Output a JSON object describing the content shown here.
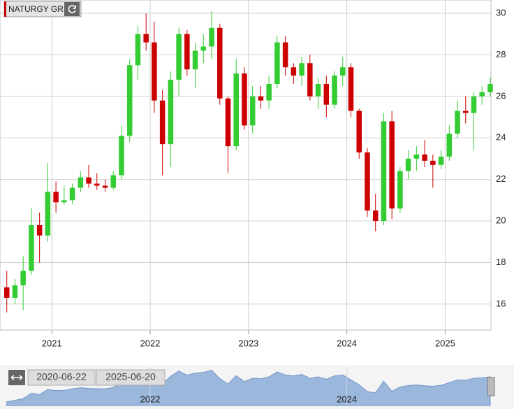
{
  "chart_data": {
    "type": "candlestick",
    "title": "NATURGY GR",
    "x": [
      "2020-07",
      "2020-08",
      "2020-09",
      "2020-10",
      "2020-11",
      "2020-12",
      "2021-01",
      "2021-02",
      "2021-03",
      "2021-04",
      "2021-05",
      "2021-06",
      "2021-07",
      "2021-08",
      "2021-09",
      "2021-10",
      "2021-11",
      "2021-12",
      "2022-01",
      "2022-02",
      "2022-03",
      "2022-04",
      "2022-05",
      "2022-06",
      "2022-07",
      "2022-08",
      "2022-09",
      "2022-10",
      "2022-11",
      "2022-12",
      "2023-01",
      "2023-02",
      "2023-03",
      "2023-04",
      "2023-05",
      "2023-06",
      "2023-07",
      "2023-08",
      "2023-09",
      "2023-10",
      "2023-11",
      "2023-12",
      "2024-01",
      "2024-02",
      "2024-03",
      "2024-04",
      "2024-05",
      "2024-06",
      "2024-07",
      "2024-08",
      "2024-09",
      "2024-10",
      "2024-11",
      "2024-12",
      "2025-01",
      "2025-02",
      "2025-03",
      "2025-04",
      "2025-05",
      "2025-06"
    ],
    "open": [
      16.8,
      16.3,
      16.9,
      17.6,
      19.8,
      19.3,
      21.4,
      20.9,
      21.0,
      21.6,
      22.1,
      21.8,
      21.7,
      21.6,
      22.2,
      24.1,
      27.5,
      29.0,
      28.6,
      25.8,
      23.7,
      26.8,
      29.0,
      27.3,
      28.2,
      28.4,
      29.3,
      25.9,
      23.6,
      27.1,
      24.6,
      26.0,
      25.8,
      26.6,
      28.6,
      27.4,
      27.0,
      27.6,
      26.0,
      26.6,
      25.6,
      27.0,
      27.4,
      25.3,
      23.3,
      20.5,
      20.0,
      24.8,
      20.6,
      22.4,
      23.0,
      23.2,
      22.9,
      22.7,
      23.1,
      24.2,
      25.3,
      25.2,
      26.0,
      26.2
    ],
    "high": [
      17.6,
      17.2,
      18.3,
      20.6,
      20.4,
      22.8,
      21.9,
      21.7,
      21.8,
      22.4,
      22.7,
      22.3,
      22.0,
      22.4,
      24.6,
      27.8,
      29.4,
      30.0,
      29.6,
      26.3,
      27.2,
      29.3,
      29.2,
      28.6,
      29.0,
      30.1,
      29.5,
      26.0,
      27.8,
      27.4,
      26.5,
      26.5,
      27.0,
      28.9,
      28.9,
      27.6,
      27.9,
      28.0,
      26.9,
      27.0,
      27.2,
      27.9,
      27.6,
      25.4,
      23.5,
      21.3,
      25.2,
      25.3,
      22.6,
      23.4,
      23.6,
      23.9,
      23.2,
      23.4,
      24.6,
      25.8,
      26.0,
      26.2,
      26.5,
      26.9
    ],
    "low": [
      15.6,
      16.0,
      15.7,
      17.4,
      18.0,
      19.0,
      20.4,
      20.8,
      20.8,
      21.4,
      21.6,
      21.5,
      21.4,
      21.5,
      22.0,
      23.8,
      26.8,
      28.2,
      25.2,
      22.2,
      22.6,
      26.0,
      27.0,
      26.4,
      27.6,
      27.8,
      25.6,
      22.3,
      23.4,
      24.4,
      24.2,
      25.4,
      25.4,
      26.4,
      27.0,
      26.6,
      26.5,
      25.8,
      25.4,
      25.0,
      25.4,
      26.5,
      25.0,
      23.0,
      20.2,
      19.5,
      19.8,
      20.1,
      20.4,
      22.0,
      22.4,
      22.6,
      21.6,
      22.5,
      22.9,
      24.0,
      24.7,
      23.4,
      25.6,
      26.0
    ],
    "close": [
      16.3,
      16.9,
      17.6,
      19.8,
      19.3,
      21.4,
      20.9,
      21.0,
      21.6,
      22.1,
      21.8,
      21.7,
      21.6,
      22.2,
      24.1,
      27.5,
      29.0,
      28.6,
      25.8,
      23.7,
      26.8,
      29.0,
      27.3,
      28.2,
      28.4,
      29.3,
      25.9,
      23.6,
      27.1,
      24.6,
      26.0,
      25.8,
      26.6,
      28.6,
      27.4,
      27.0,
      27.6,
      26.0,
      26.6,
      25.6,
      27.0,
      27.4,
      25.3,
      23.3,
      20.5,
      20.0,
      24.8,
      20.6,
      22.4,
      23.0,
      23.2,
      22.9,
      22.7,
      23.1,
      24.2,
      25.3,
      25.2,
      26.0,
      26.2,
      26.6
    ],
    "up_color": "#33cc33",
    "down_color": "#cc0000",
    "xlim": [
      "2020-06-22",
      "2025-06-20"
    ],
    "xticks": [
      2021,
      2022,
      2023,
      2024,
      2025
    ],
    "ylim": [
      14.75,
      30.64
    ],
    "yticks": [
      16,
      18,
      20,
      22,
      24,
      26,
      28,
      30
    ],
    "grid": true,
    "navigator": {
      "xticks": [
        2022,
        2024
      ],
      "color": "#9bb7dc"
    }
  }
}
